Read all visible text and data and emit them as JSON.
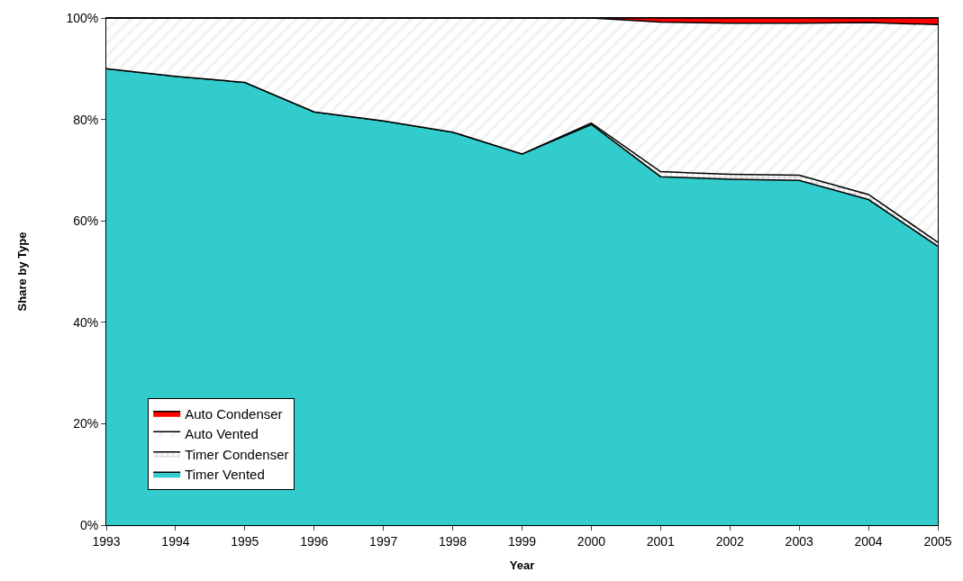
{
  "chart_data": {
    "type": "area",
    "stacked": true,
    "xlabel": "Year",
    "ylabel": "Share by Type",
    "x": [
      1993,
      1994,
      1995,
      1996,
      1997,
      1998,
      1999,
      2000,
      2001,
      2002,
      2003,
      2004,
      2005
    ],
    "series": [
      {
        "name": "Timer Vented",
        "color": "#33cccc",
        "values": [
          90,
          88.5,
          87.3,
          81.5,
          79.7,
          77.5,
          73.2,
          79,
          68.7,
          68.2,
          68,
          64.2,
          55
        ]
      },
      {
        "name": "Timer Condenser",
        "color": "#ffffff",
        "values": [
          0,
          0,
          0,
          0,
          0,
          0,
          0,
          0.3,
          1,
          1,
          1,
          1,
          0.8
        ]
      },
      {
        "name": "Auto Vented",
        "color": "#ffffff",
        "values": [
          10,
          11.5,
          12.7,
          18.5,
          20.3,
          22.5,
          26.8,
          20.7,
          29.5,
          29.8,
          30,
          33.9,
          42.9
        ]
      },
      {
        "name": "Auto Condenser",
        "color": "#ff0000",
        "values": [
          0,
          0,
          0,
          0,
          0,
          0,
          0,
          0,
          0.8,
          1,
          1,
          0.9,
          1.3
        ]
      }
    ],
    "xlim": [
      1993,
      2005
    ],
    "xticks": [
      1993,
      1994,
      1995,
      1996,
      1997,
      1998,
      1999,
      2000,
      2001,
      2002,
      2003,
      2004,
      2005
    ],
    "ylim": [
      0,
      100
    ],
    "yticks": [
      {
        "value": 0,
        "label": "0%"
      },
      {
        "value": 20,
        "label": "20%"
      },
      {
        "value": 40,
        "label": "40%"
      },
      {
        "value": 60,
        "label": "60%"
      },
      {
        "value": 80,
        "label": "80%"
      },
      {
        "value": 100,
        "label": "100%"
      }
    ],
    "legend": "bottom left"
  }
}
